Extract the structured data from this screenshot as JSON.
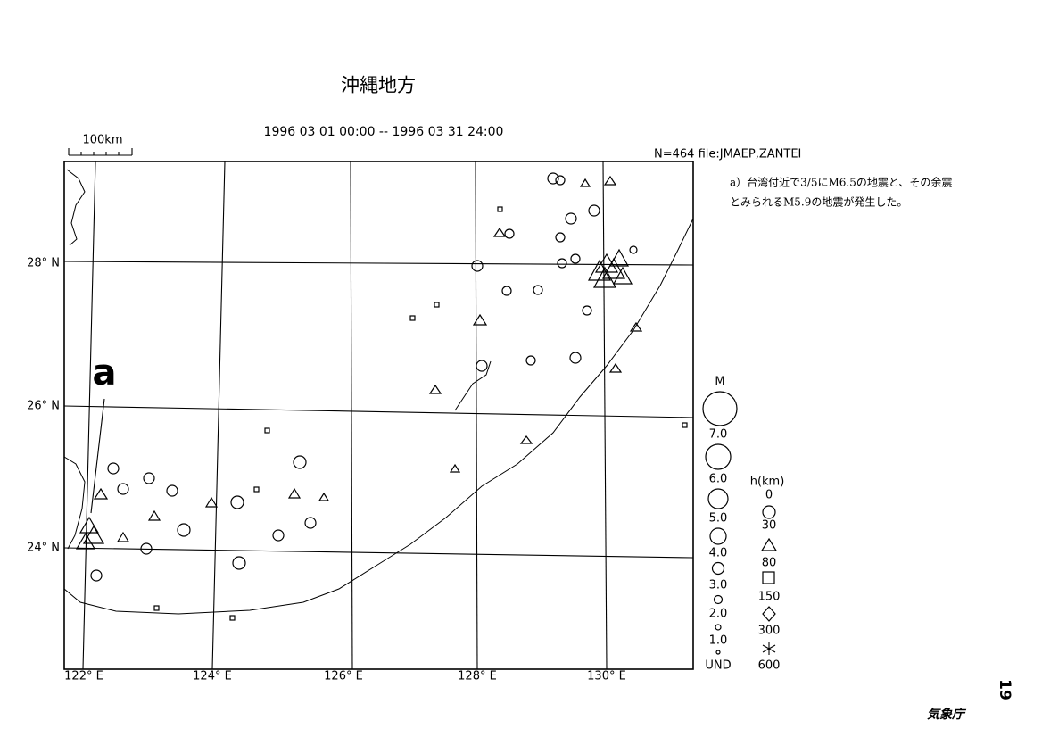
{
  "header": {
    "title": "沖縄地方",
    "period": "1996 03 01 00:00 -- 1996 03 31 24:00",
    "scale_label": "100km",
    "info": "N=464 file:JMAEP,ZANTEI"
  },
  "annotation": {
    "lines": [
      "a）台湾付近で3/5にM6.5の地震と、その余震",
      "とみられるM5.9の地震が発生した。"
    ],
    "marker": "a"
  },
  "map": {
    "latitude_labels": [
      "28° N",
      "26° N",
      "24° N"
    ],
    "longitude_labels": [
      "122° E",
      "124° E",
      "126° E",
      "128° E",
      "130° E"
    ]
  },
  "legend": {
    "magnitude_title": "M",
    "magnitude_labels": [
      "7.0",
      "6.0",
      "5.0",
      "4.0",
      "3.0",
      "2.0",
      "1.0",
      "UND"
    ],
    "depth_title": "h(km)",
    "depth_labels": [
      "0",
      "30",
      "80",
      "150",
      "300",
      "600"
    ]
  },
  "footer": {
    "page_number": "19",
    "agency": "気象庁"
  }
}
